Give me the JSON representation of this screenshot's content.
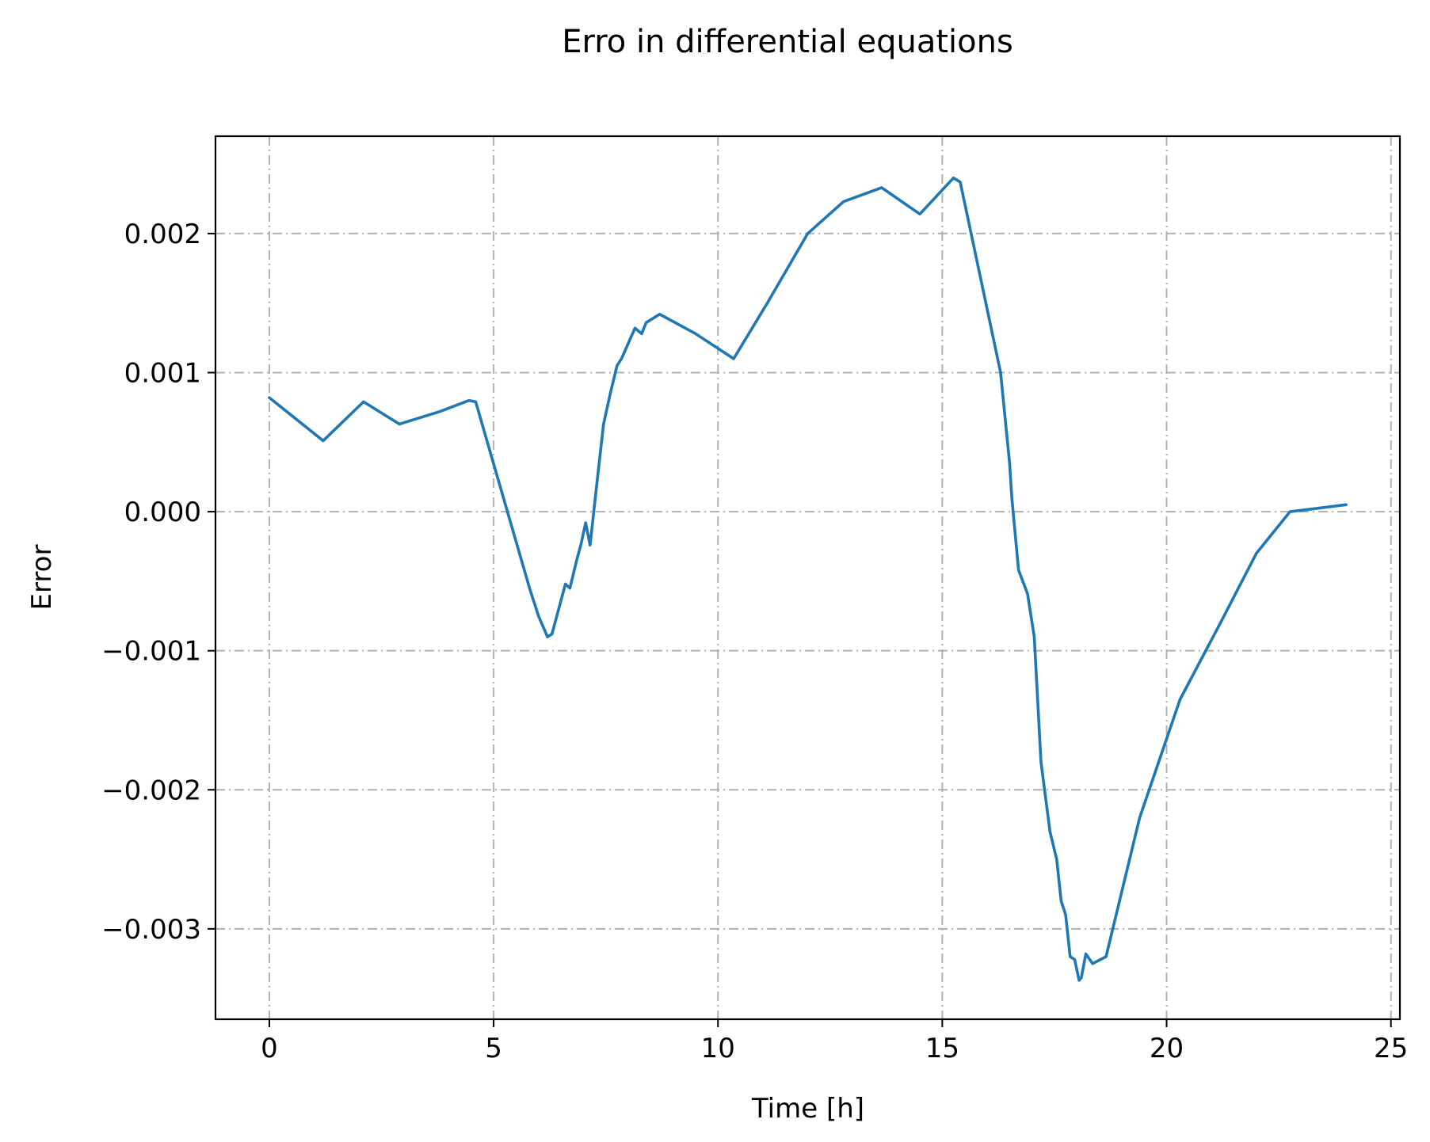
{
  "chart_data": {
    "type": "line",
    "title": "Erro in differential equations",
    "xlabel": "Time [h]",
    "ylabel": "Error",
    "xlim": [
      -1.2,
      25.2
    ],
    "ylim": [
      -0.00365,
      0.0027
    ],
    "x_ticks": [
      0,
      5,
      10,
      15,
      20,
      25
    ],
    "x_tick_labels": [
      "0",
      "5",
      "10",
      "15",
      "20",
      "25"
    ],
    "y_ticks": [
      0.002,
      0.001,
      0.0,
      -0.001,
      -0.002,
      -0.003
    ],
    "y_tick_labels": [
      "0.002",
      "0.001",
      "0.000",
      "−0.001",
      "−0.002",
      "−0.003"
    ],
    "grid": true,
    "colors": {
      "series": "#1f77b4",
      "grid": "#b0b0b0",
      "axes": "#000000"
    },
    "series": [
      {
        "color": "#1f77b4",
        "x": [
          0,
          1.2,
          2.1,
          2.9,
          3.8,
          4.45,
          4.6,
          5.8,
          6.0,
          6.2,
          6.3,
          6.45,
          6.6,
          6.7,
          6.85,
          6.95,
          7.05,
          7.15,
          7.3,
          7.45,
          7.6,
          7.75,
          7.85,
          8.15,
          8.3,
          8.4,
          8.7,
          9.5,
          10.35,
          11.1,
          12.0,
          12.8,
          13.65,
          14.5,
          15.25,
          15.4,
          16.3,
          16.5,
          16.55,
          16.7,
          16.9,
          17.05,
          17.2,
          17.4,
          17.55,
          17.65,
          17.75,
          17.85,
          17.95,
          18.05,
          18.1,
          18.2,
          18.35,
          18.65,
          19.4,
          20.3,
          21.2,
          22.0,
          22.75,
          24.0
        ],
        "y": [
          0.00082,
          0.00051,
          0.00079,
          0.00063,
          0.00072,
          0.0008,
          0.00079,
          -0.00055,
          -0.00075,
          -0.0009,
          -0.00088,
          -0.0007,
          -0.00052,
          -0.00055,
          -0.00035,
          -0.00023,
          -8e-05,
          -0.00024,
          0.0002,
          0.00063,
          0.00085,
          0.00105,
          0.0011,
          0.00132,
          0.00128,
          0.00136,
          0.00142,
          0.00128,
          0.0011,
          0.0015,
          0.002,
          0.00223,
          0.00233,
          0.00214,
          0.0024,
          0.00237,
          0.001,
          0.00035,
          0.0001,
          -0.00042,
          -0.00059,
          -0.0009,
          -0.0018,
          -0.0023,
          -0.0025,
          -0.0028,
          -0.0029,
          -0.0032,
          -0.00322,
          -0.00337,
          -0.00335,
          -0.00318,
          -0.00325,
          -0.0032,
          -0.0022,
          -0.00135,
          -0.0008,
          -0.0003,
          0.0,
          5e-05
        ]
      }
    ]
  }
}
